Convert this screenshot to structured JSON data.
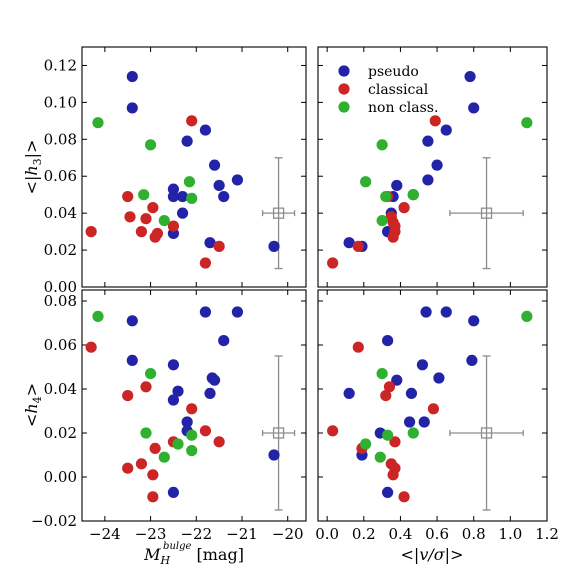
{
  "chart_data": {
    "type": "scatter",
    "colors": {
      "pseudo": "#2323a8",
      "classical": "#cc2525",
      "non class.": "#2fb02f",
      "error_bar": "#8c8c8c",
      "axes": "#000000"
    },
    "legend": {
      "placement": "top-left",
      "entries": [
        "pseudo",
        "classical",
        "non class."
      ]
    },
    "x_axes": {
      "mag": {
        "label": "M_H^bulge [mag]",
        "label_parts": {
          "base": "M",
          "sub": "H",
          "sup": "bulge",
          "tail": " [mag]"
        },
        "range": [
          -24.5,
          -19.6
        ],
        "ticks": [
          "−24",
          "−23",
          "−22",
          "−21",
          "−20"
        ],
        "tick_values": [
          -24,
          -23,
          -22,
          -21,
          -20
        ]
      },
      "vsig": {
        "label": "<|v/σ|>",
        "label_parts": {
          "pre": "<|",
          "body": "v/σ",
          "post": "|>"
        },
        "range": [
          -0.05,
          1.2
        ],
        "ticks": [
          "0.0",
          "0.2",
          "0.4",
          "0.6",
          "0.8",
          "1.0",
          "1.2"
        ],
        "tick_values": [
          0.0,
          0.2,
          0.4,
          0.6,
          0.8,
          1.0,
          1.2
        ]
      }
    },
    "y_axes": {
      "h3": {
        "label": "<|h3|>",
        "label_parts": {
          "pre": "<|",
          "base": "h",
          "sub": "3",
          "post": "|>"
        },
        "range": [
          0.0,
          0.13
        ],
        "ticks": [
          "0.00",
          "0.02",
          "0.04",
          "0.06",
          "0.08",
          "0.10",
          "0.12"
        ],
        "tick_values": [
          0.0,
          0.02,
          0.04,
          0.06,
          0.08,
          0.1,
          0.12
        ]
      },
      "h4": {
        "label": "<h4>",
        "label_parts": {
          "pre": "<",
          "base": "h",
          "sub": "4",
          "post": ">"
        },
        "range": [
          -0.02,
          0.085
        ],
        "ticks": [
          "−0.02",
          "0.00",
          "0.02",
          "0.04",
          "0.06",
          "0.08"
        ],
        "tick_values": [
          -0.02,
          0.0,
          0.02,
          0.04,
          0.06,
          0.08
        ]
      }
    },
    "panels": [
      {
        "x_axis": "mag",
        "y_axis": "h3",
        "error_bar": {
          "x": -20.2,
          "y": 0.04,
          "xerr": 0.35,
          "yerr": 0.03
        },
        "series": [
          {
            "name": "pseudo",
            "points": [
              [
                -23.4,
                0.114
              ],
              [
                -23.4,
                0.097
              ],
              [
                -22.2,
                0.079
              ],
              [
                -21.8,
                0.085
              ],
              [
                -21.6,
                0.066
              ],
              [
                -21.5,
                0.055
              ],
              [
                -21.4,
                0.049
              ],
              [
                -21.1,
                0.058
              ],
              [
                -22.5,
                0.053
              ],
              [
                -22.5,
                0.049
              ],
              [
                -22.3,
                0.049
              ],
              [
                -22.3,
                0.04
              ],
              [
                -22.5,
                0.029
              ],
              [
                -21.7,
                0.024
              ],
              [
                -20.3,
                0.022
              ]
            ]
          },
          {
            "name": "classical",
            "points": [
              [
                -24.3,
                0.03
              ],
              [
                -23.5,
                0.049
              ],
              [
                -23.45,
                0.038
              ],
              [
                -23.1,
                0.037
              ],
              [
                -23.2,
                0.03
              ],
              [
                -22.95,
                0.043
              ],
              [
                -22.9,
                0.027
              ],
              [
                -22.85,
                0.029
              ],
              [
                -22.5,
                0.033
              ],
              [
                -22.1,
                0.09
              ],
              [
                -21.8,
                0.013
              ],
              [
                -21.5,
                0.022
              ]
            ]
          },
          {
            "name": "non class.",
            "points": [
              [
                -24.15,
                0.089
              ],
              [
                -23.0,
                0.077
              ],
              [
                -23.15,
                0.05
              ],
              [
                -22.7,
                0.036
              ],
              [
                -22.15,
                0.057
              ],
              [
                -22.1,
                0.048
              ]
            ]
          }
        ]
      },
      {
        "x_axis": "vsig",
        "y_axis": "h3",
        "legend": true,
        "error_bar": {
          "x": 0.87,
          "y": 0.04,
          "xerr": 0.2,
          "yerr": 0.03
        },
        "series": [
          {
            "name": "pseudo",
            "points": [
              [
                0.78,
                0.114
              ],
              [
                0.8,
                0.097
              ],
              [
                0.65,
                0.085
              ],
              [
                0.55,
                0.079
              ],
              [
                0.6,
                0.066
              ],
              [
                0.55,
                0.058
              ],
              [
                0.38,
                0.055
              ],
              [
                0.47,
                0.05
              ],
              [
                0.36,
                0.049
              ],
              [
                0.35,
                0.04
              ],
              [
                0.33,
                0.03
              ],
              [
                0.12,
                0.024
              ],
              [
                0.19,
                0.022
              ]
            ]
          },
          {
            "name": "classical",
            "points": [
              [
                0.03,
                0.013
              ],
              [
                0.17,
                0.022
              ],
              [
                0.33,
                0.049
              ],
              [
                0.35,
                0.038
              ],
              [
                0.36,
                0.035
              ],
              [
                0.37,
                0.033
              ],
              [
                0.37,
                0.03
              ],
              [
                0.36,
                0.027
              ],
              [
                0.42,
                0.043
              ],
              [
                0.59,
                0.09
              ]
            ]
          },
          {
            "name": "non class.",
            "points": [
              [
                1.09,
                0.089
              ],
              [
                0.3,
                0.077
              ],
              [
                0.21,
                0.057
              ],
              [
                0.32,
                0.049
              ],
              [
                0.3,
                0.036
              ],
              [
                0.47,
                0.05
              ]
            ]
          }
        ]
      },
      {
        "x_axis": "mag",
        "y_axis": "h4",
        "error_bar": {
          "x": -20.2,
          "y": 0.02,
          "xerr": 0.35,
          "yerr": 0.035
        },
        "series": [
          {
            "name": "pseudo",
            "points": [
              [
                -23.4,
                0.071
              ],
              [
                -23.4,
                0.053
              ],
              [
                -22.5,
                0.051
              ],
              [
                -22.4,
                0.039
              ],
              [
                -22.5,
                0.035
              ],
              [
                -22.2,
                0.025
              ],
              [
                -22.2,
                0.021
              ],
              [
                -21.8,
                0.075
              ],
              [
                -21.65,
                0.045
              ],
              [
                -21.6,
                0.044
              ],
              [
                -21.7,
                0.038
              ],
              [
                -21.4,
                0.062
              ],
              [
                -21.1,
                0.075
              ],
              [
                -20.3,
                0.01
              ],
              [
                -22.5,
                -0.007
              ]
            ]
          },
          {
            "name": "classical",
            "points": [
              [
                -24.3,
                0.059
              ],
              [
                -23.5,
                0.037
              ],
              [
                -23.1,
                0.041
              ],
              [
                -23.5,
                0.004
              ],
              [
                -23.2,
                0.006
              ],
              [
                -22.9,
                0.013
              ],
              [
                -22.95,
                0.001
              ],
              [
                -22.95,
                -0.009
              ],
              [
                -22.5,
                0.016
              ],
              [
                -22.1,
                0.031
              ],
              [
                -21.8,
                0.021
              ],
              [
                -21.5,
                0.016
              ]
            ]
          },
          {
            "name": "non class.",
            "points": [
              [
                -24.15,
                0.073
              ],
              [
                -23.0,
                0.047
              ],
              [
                -23.1,
                0.02
              ],
              [
                -22.7,
                0.009
              ],
              [
                -22.4,
                0.015
              ],
              [
                -22.1,
                0.019
              ],
              [
                -22.1,
                0.012
              ]
            ]
          }
        ]
      },
      {
        "x_axis": "vsig",
        "y_axis": "h4",
        "error_bar": {
          "x": 0.87,
          "y": 0.02,
          "xerr": 0.2,
          "yerr": 0.035
        },
        "series": [
          {
            "name": "pseudo",
            "points": [
              [
                0.8,
                0.071
              ],
              [
                0.54,
                0.075
              ],
              [
                0.65,
                0.075
              ],
              [
                0.79,
                0.053
              ],
              [
                0.12,
                0.038
              ],
              [
                0.33,
                0.062
              ],
              [
                0.38,
                0.044
              ],
              [
                0.46,
                0.038
              ],
              [
                0.52,
                0.051
              ],
              [
                0.61,
                0.045
              ],
              [
                0.45,
                0.025
              ],
              [
                0.53,
                0.025
              ],
              [
                0.19,
                0.01
              ],
              [
                0.33,
                -0.007
              ],
              [
                0.29,
                0.02
              ]
            ]
          },
          {
            "name": "classical",
            "points": [
              [
                0.03,
                0.021
              ],
              [
                0.17,
                0.059
              ],
              [
                0.32,
                0.037
              ],
              [
                0.34,
                0.041
              ],
              [
                0.37,
                0.016
              ],
              [
                0.19,
                0.013
              ],
              [
                0.35,
                0.006
              ],
              [
                0.37,
                0.004
              ],
              [
                0.36,
                0.001
              ],
              [
                0.42,
                -0.009
              ],
              [
                0.58,
                0.031
              ]
            ]
          },
          {
            "name": "non class.",
            "points": [
              [
                1.09,
                0.073
              ],
              [
                0.3,
                0.047
              ],
              [
                0.21,
                0.015
              ],
              [
                0.33,
                0.019
              ],
              [
                0.29,
                0.009
              ],
              [
                0.47,
                0.02
              ]
            ]
          }
        ]
      }
    ]
  }
}
